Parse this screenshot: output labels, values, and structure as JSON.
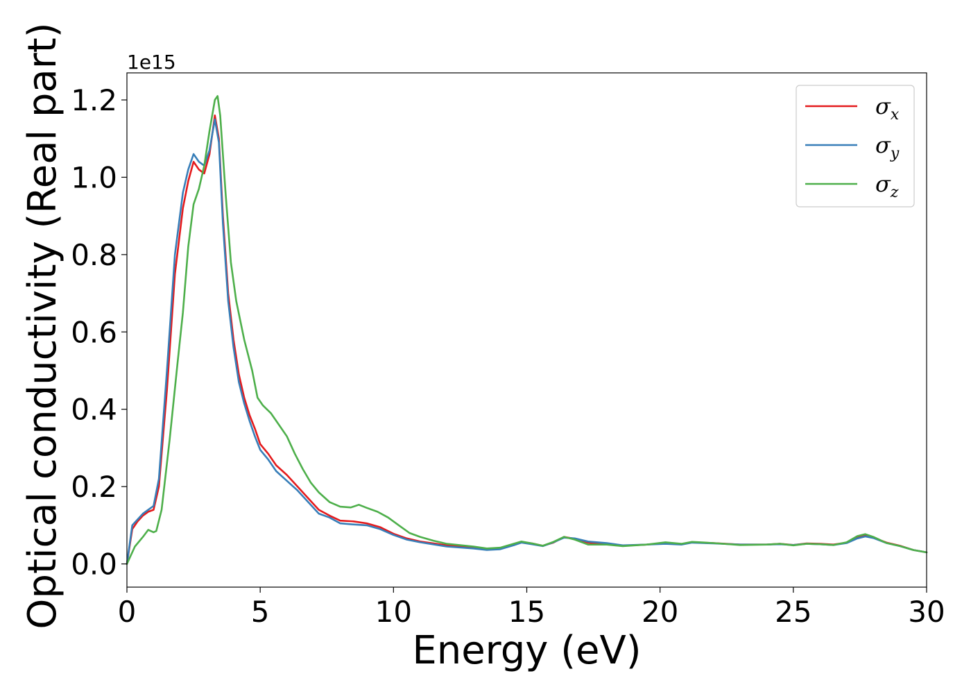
{
  "chart_data": {
    "type": "line",
    "title": "",
    "xlabel": "Energy (eV)",
    "ylabel": "Optical conductivity (Real part)",
    "y_offset_label": "1e15",
    "xlim": [
      0,
      30
    ],
    "ylim": [
      -0.06,
      1.27
    ],
    "xticks": [
      0,
      5,
      10,
      15,
      20,
      25,
      30
    ],
    "xtick_labels": [
      "0",
      "5",
      "10",
      "15",
      "20",
      "25",
      "30"
    ],
    "yticks": [
      0.0,
      0.2,
      0.4,
      0.6,
      0.8,
      1.0,
      1.2
    ],
    "ytick_labels": [
      "0.0",
      "0.2",
      "0.4",
      "0.6",
      "0.8",
      "1.0",
      "1.2"
    ],
    "grid": false,
    "legend_position": "top-right",
    "series": [
      {
        "name": "σx",
        "legend_main": "σ",
        "legend_sub": "x",
        "color": "#e41a1c",
        "points": [
          [
            0,
            0
          ],
          [
            0.2,
            0.09
          ],
          [
            0.4,
            0.11
          ],
          [
            0.6,
            0.125
          ],
          [
            0.8,
            0.135
          ],
          [
            1.0,
            0.14
          ],
          [
            1.2,
            0.2
          ],
          [
            1.5,
            0.45
          ],
          [
            1.8,
            0.75
          ],
          [
            2.1,
            0.92
          ],
          [
            2.3,
            0.99
          ],
          [
            2.5,
            1.04
          ],
          [
            2.7,
            1.02
          ],
          [
            2.9,
            1.01
          ],
          [
            3.1,
            1.06
          ],
          [
            3.3,
            1.16
          ],
          [
            3.45,
            1.1
          ],
          [
            3.6,
            0.9
          ],
          [
            3.8,
            0.7
          ],
          [
            4.0,
            0.58
          ],
          [
            4.2,
            0.49
          ],
          [
            4.4,
            0.43
          ],
          [
            4.6,
            0.385
          ],
          [
            4.8,
            0.35
          ],
          [
            5.0,
            0.31
          ],
          [
            5.3,
            0.285
          ],
          [
            5.6,
            0.255
          ],
          [
            6.0,
            0.23
          ],
          [
            6.4,
            0.2
          ],
          [
            6.8,
            0.17
          ],
          [
            7.2,
            0.14
          ],
          [
            7.6,
            0.125
          ],
          [
            8.0,
            0.112
          ],
          [
            8.5,
            0.11
          ],
          [
            9.0,
            0.105
          ],
          [
            9.5,
            0.095
          ],
          [
            10.0,
            0.078
          ],
          [
            10.5,
            0.066
          ],
          [
            11.0,
            0.058
          ],
          [
            12.0,
            0.048
          ],
          [
            13.0,
            0.043
          ],
          [
            13.5,
            0.038
          ],
          [
            14.0,
            0.04
          ],
          [
            14.5,
            0.05
          ],
          [
            14.8,
            0.057
          ],
          [
            15.2,
            0.053
          ],
          [
            15.6,
            0.047
          ],
          [
            16.0,
            0.055
          ],
          [
            16.4,
            0.07
          ],
          [
            16.8,
            0.065
          ],
          [
            17.3,
            0.055
          ],
          [
            18.0,
            0.052
          ],
          [
            18.6,
            0.047
          ],
          [
            19.5,
            0.05
          ],
          [
            20.2,
            0.054
          ],
          [
            20.8,
            0.051
          ],
          [
            21.2,
            0.056
          ],
          [
            22.0,
            0.054
          ],
          [
            23.0,
            0.05
          ],
          [
            24.0,
            0.05
          ],
          [
            24.5,
            0.052
          ],
          [
            25.0,
            0.049
          ],
          [
            25.5,
            0.053
          ],
          [
            26.0,
            0.052
          ],
          [
            26.5,
            0.05
          ],
          [
            27.0,
            0.055
          ],
          [
            27.4,
            0.068
          ],
          [
            27.7,
            0.073
          ],
          [
            28.0,
            0.068
          ],
          [
            28.5,
            0.055
          ],
          [
            29.0,
            0.047
          ],
          [
            29.5,
            0.036
          ],
          [
            30.0,
            0.03
          ]
        ]
      },
      {
        "name": "σy",
        "legend_main": "σ",
        "legend_sub": "y",
        "color": "#377eb8",
        "points": [
          [
            0,
            0
          ],
          [
            0.2,
            0.1
          ],
          [
            0.4,
            0.115
          ],
          [
            0.6,
            0.13
          ],
          [
            0.8,
            0.14
          ],
          [
            1.0,
            0.15
          ],
          [
            1.2,
            0.22
          ],
          [
            1.5,
            0.5
          ],
          [
            1.8,
            0.8
          ],
          [
            2.1,
            0.96
          ],
          [
            2.3,
            1.02
          ],
          [
            2.5,
            1.06
          ],
          [
            2.7,
            1.04
          ],
          [
            2.9,
            1.03
          ],
          [
            3.1,
            1.07
          ],
          [
            3.3,
            1.15
          ],
          [
            3.45,
            1.09
          ],
          [
            3.6,
            0.88
          ],
          [
            3.8,
            0.68
          ],
          [
            4.0,
            0.56
          ],
          [
            4.2,
            0.47
          ],
          [
            4.4,
            0.415
          ],
          [
            4.6,
            0.37
          ],
          [
            4.8,
            0.33
          ],
          [
            5.0,
            0.295
          ],
          [
            5.3,
            0.27
          ],
          [
            5.6,
            0.24
          ],
          [
            6.0,
            0.215
          ],
          [
            6.4,
            0.19
          ],
          [
            6.8,
            0.16
          ],
          [
            7.2,
            0.13
          ],
          [
            7.6,
            0.12
          ],
          [
            8.0,
            0.105
          ],
          [
            8.5,
            0.102
          ],
          [
            9.0,
            0.1
          ],
          [
            9.5,
            0.09
          ],
          [
            10.0,
            0.075
          ],
          [
            10.5,
            0.063
          ],
          [
            11.0,
            0.056
          ],
          [
            12.0,
            0.045
          ],
          [
            13.0,
            0.04
          ],
          [
            13.5,
            0.036
          ],
          [
            14.0,
            0.038
          ],
          [
            14.5,
            0.048
          ],
          [
            14.8,
            0.055
          ],
          [
            15.2,
            0.051
          ],
          [
            15.6,
            0.046
          ],
          [
            16.0,
            0.056
          ],
          [
            16.4,
            0.068
          ],
          [
            16.8,
            0.066
          ],
          [
            17.3,
            0.058
          ],
          [
            18.0,
            0.054
          ],
          [
            18.6,
            0.048
          ],
          [
            19.5,
            0.05
          ],
          [
            20.2,
            0.052
          ],
          [
            20.8,
            0.05
          ],
          [
            21.2,
            0.055
          ],
          [
            22.0,
            0.053
          ],
          [
            23.0,
            0.05
          ],
          [
            24.0,
            0.05
          ],
          [
            24.5,
            0.051
          ],
          [
            25.0,
            0.049
          ],
          [
            25.5,
            0.052
          ],
          [
            26.0,
            0.051
          ],
          [
            26.5,
            0.049
          ],
          [
            27.0,
            0.054
          ],
          [
            27.4,
            0.066
          ],
          [
            27.7,
            0.071
          ],
          [
            28.0,
            0.067
          ],
          [
            28.5,
            0.054
          ],
          [
            29.0,
            0.046
          ],
          [
            29.5,
            0.036
          ],
          [
            30.0,
            0.03
          ]
        ]
      },
      {
        "name": "σz",
        "legend_main": "σ",
        "legend_sub": "z",
        "color": "#4daf4a",
        "points": [
          [
            0,
            0
          ],
          [
            0.3,
            0.045
          ],
          [
            0.6,
            0.07
          ],
          [
            0.8,
            0.088
          ],
          [
            1.0,
            0.082
          ],
          [
            1.1,
            0.085
          ],
          [
            1.3,
            0.14
          ],
          [
            1.6,
            0.32
          ],
          [
            1.9,
            0.52
          ],
          [
            2.1,
            0.65
          ],
          [
            2.3,
            0.82
          ],
          [
            2.5,
            0.93
          ],
          [
            2.7,
            0.97
          ],
          [
            2.9,
            1.03
          ],
          [
            3.1,
            1.12
          ],
          [
            3.3,
            1.2
          ],
          [
            3.4,
            1.21
          ],
          [
            3.5,
            1.16
          ],
          [
            3.7,
            0.96
          ],
          [
            3.9,
            0.78
          ],
          [
            4.1,
            0.68
          ],
          [
            4.4,
            0.58
          ],
          [
            4.7,
            0.5
          ],
          [
            4.9,
            0.43
          ],
          [
            5.1,
            0.41
          ],
          [
            5.4,
            0.39
          ],
          [
            5.7,
            0.36
          ],
          [
            6.0,
            0.33
          ],
          [
            6.3,
            0.285
          ],
          [
            6.6,
            0.245
          ],
          [
            6.9,
            0.21
          ],
          [
            7.2,
            0.185
          ],
          [
            7.6,
            0.16
          ],
          [
            8.0,
            0.148
          ],
          [
            8.4,
            0.146
          ],
          [
            8.7,
            0.153
          ],
          [
            9.0,
            0.145
          ],
          [
            9.4,
            0.135
          ],
          [
            9.8,
            0.12
          ],
          [
            10.2,
            0.1
          ],
          [
            10.6,
            0.08
          ],
          [
            11.0,
            0.07
          ],
          [
            11.5,
            0.06
          ],
          [
            12.0,
            0.052
          ],
          [
            13.0,
            0.045
          ],
          [
            13.5,
            0.04
          ],
          [
            14.0,
            0.042
          ],
          [
            14.5,
            0.052
          ],
          [
            14.8,
            0.058
          ],
          [
            15.2,
            0.053
          ],
          [
            15.6,
            0.047
          ],
          [
            16.0,
            0.057
          ],
          [
            16.4,
            0.07
          ],
          [
            16.8,
            0.063
          ],
          [
            17.3,
            0.05
          ],
          [
            18.0,
            0.05
          ],
          [
            18.6,
            0.046
          ],
          [
            19.5,
            0.05
          ],
          [
            20.2,
            0.056
          ],
          [
            20.8,
            0.052
          ],
          [
            21.2,
            0.057
          ],
          [
            22.0,
            0.054
          ],
          [
            23.0,
            0.049
          ],
          [
            24.0,
            0.05
          ],
          [
            24.5,
            0.052
          ],
          [
            25.0,
            0.048
          ],
          [
            25.5,
            0.052
          ],
          [
            26.0,
            0.051
          ],
          [
            26.5,
            0.049
          ],
          [
            27.0,
            0.056
          ],
          [
            27.4,
            0.072
          ],
          [
            27.7,
            0.077
          ],
          [
            28.0,
            0.07
          ],
          [
            28.5,
            0.054
          ],
          [
            29.0,
            0.046
          ],
          [
            29.5,
            0.036
          ],
          [
            30.0,
            0.03
          ]
        ]
      }
    ]
  }
}
